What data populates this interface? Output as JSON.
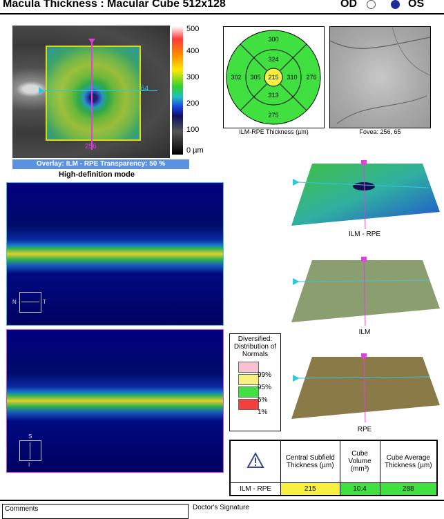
{
  "header": {
    "title": "Macula Thickness : Macular Cube 512x128",
    "od_label": "OD",
    "os_label": "OS",
    "selected_eye": "OS"
  },
  "fundus": {
    "overlay_caption": "Overlay: ILM - RPE  Transparency: 50 %",
    "marker_right": "64",
    "marker_bottom": "256",
    "scale_labels": [
      "500",
      "400",
      "300",
      "200",
      "100",
      "0 µm"
    ]
  },
  "hd_mode": "High-definition mode",
  "etdrs": {
    "center": "215",
    "inner_superior": "324",
    "inner_inferior": "313",
    "inner_nasal": "305",
    "inner_temporal": "310",
    "outer_superior": "300",
    "outer_inferior": "275",
    "outer_nasal": "302",
    "outer_temporal": "276",
    "caption": "ILM-RPE Thickness (µm)"
  },
  "fovea": {
    "caption": "Fovea: 256, 65"
  },
  "bscan": {
    "orient_n": "N",
    "orient_t": "T",
    "orient_s": "S",
    "orient_i": "I"
  },
  "surfaces": {
    "surface1_label": "ILM - RPE",
    "surface2_label": "ILM",
    "surface3_label": "RPE"
  },
  "legend": {
    "title": "Diversified: Distribution of Normals",
    "items": [
      {
        "label": "99%",
        "color": "#f8c0d0"
      },
      {
        "label": "95%",
        "color": "#f8f080"
      },
      {
        "label": "5%",
        "color": "#40e040"
      },
      {
        "label": "1%",
        "color": "#f04040"
      }
    ]
  },
  "results": {
    "col1": "Central Subfield Thickness (µm)",
    "col2": "Cube Volume (mm³)",
    "col3": "Cube Average Thickness (µm)",
    "row_label": "ILM - RPE",
    "central_subfield": "215",
    "cube_volume": "10.4",
    "cube_avg": "288",
    "colors": {
      "central": "#f8f040",
      "volume": "#40e040",
      "avg": "#40e040"
    }
  },
  "footer": {
    "comments_label": "Comments",
    "signature_label": "Doctor's Signature"
  }
}
